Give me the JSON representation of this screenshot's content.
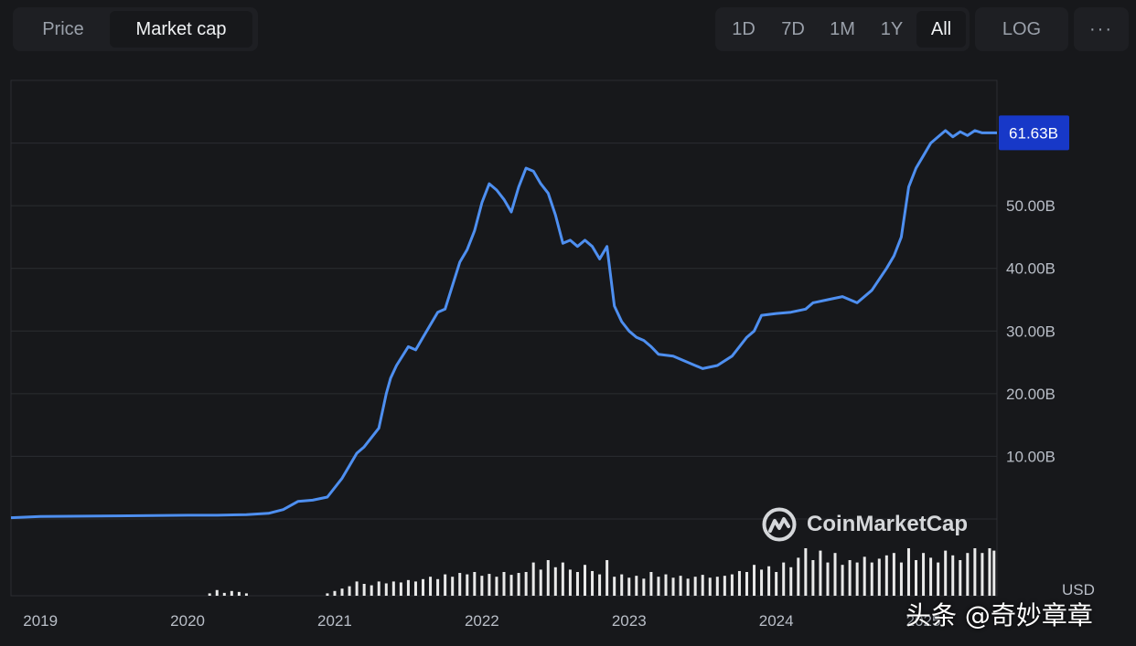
{
  "toolbar": {
    "tabs": [
      {
        "label": "Price",
        "active": false
      },
      {
        "label": "Market cap",
        "active": true
      }
    ],
    "ranges": [
      {
        "label": "1D",
        "active": false
      },
      {
        "label": "7D",
        "active": false
      },
      {
        "label": "1M",
        "active": false
      },
      {
        "label": "1Y",
        "active": false
      },
      {
        "label": "All",
        "active": true
      }
    ],
    "log_label": "LOG",
    "more_label": "···"
  },
  "watermark": {
    "text": "CoinMarketCap",
    "icon": "coinmarketcap-logo"
  },
  "currency_label": "USD",
  "credit": "头条 @奇妙章章",
  "colors": {
    "background": "#17181b",
    "line": "#4e8ff0",
    "current_badge": "#1738c8",
    "volume": "#e9e9e9",
    "grid": "#2b2d31"
  },
  "chart_data": {
    "type": "line",
    "title": "",
    "xlabel": "",
    "ylabel": "",
    "ylim": [
      0,
      70
    ],
    "y_unit": "B",
    "y_ticks": [
      "10.00B",
      "20.00B",
      "30.00B",
      "40.00B",
      "50.00B"
    ],
    "x_ticks": [
      "2019",
      "2020",
      "2021",
      "2022",
      "2023",
      "2024",
      "2025"
    ],
    "xlim": [
      2018.8,
      2025.5
    ],
    "current_value": 61.63,
    "current_label": "61.63B",
    "grid": true,
    "series": [
      {
        "x": [
          2018.8,
          2019.0,
          2019.5,
          2020.0,
          2020.2,
          2020.4,
          2020.55,
          2020.65,
          2020.75,
          2020.85,
          2020.95,
          2021.05,
          2021.15,
          2021.2,
          2021.3,
          2021.35,
          2021.38,
          2021.42,
          2021.5,
          2021.55,
          2021.6,
          2021.7,
          2021.75,
          2021.85,
          2021.9,
          2021.95,
          2022.0,
          2022.05,
          2022.1,
          2022.15,
          2022.2,
          2022.25,
          2022.3,
          2022.35,
          2022.4,
          2022.45,
          2022.5,
          2022.55,
          2022.6,
          2022.65,
          2022.7,
          2022.75,
          2022.8,
          2022.85,
          2022.9,
          2022.95,
          2023.0,
          2023.05,
          2023.1,
          2023.15,
          2023.2,
          2023.3,
          2023.4,
          2023.5,
          2023.6,
          2023.7,
          2023.8,
          2023.85,
          2023.9,
          2024.0,
          2024.1,
          2024.2,
          2024.25,
          2024.35,
          2024.45,
          2024.55,
          2024.65,
          2024.75,
          2024.8,
          2024.85,
          2024.9,
          2024.95,
          2025.0,
          2025.05,
          2025.1,
          2025.15,
          2025.2,
          2025.25,
          2025.3,
          2025.35,
          2025.4,
          2025.45,
          2025.5
        ],
        "y": [
          0.2,
          0.4,
          0.5,
          0.6,
          0.6,
          0.7,
          0.9,
          1.5,
          2.8,
          3.0,
          3.5,
          6.5,
          10.5,
          11.5,
          14.5,
          20.0,
          22.5,
          24.5,
          27.5,
          27.0,
          29.0,
          33.0,
          33.5,
          41.0,
          43.0,
          46.0,
          50.5,
          53.5,
          52.5,
          51.0,
          49.0,
          53.0,
          56.0,
          55.5,
          53.5,
          52.0,
          48.5,
          44.0,
          44.5,
          43.5,
          44.5,
          43.5,
          41.5,
          43.5,
          34.0,
          31.5,
          30.0,
          29.0,
          28.5,
          27.5,
          26.3,
          26.0,
          25.0,
          24.0,
          24.5,
          26.0,
          29.0,
          30.0,
          32.5,
          32.8,
          33.0,
          33.5,
          34.5,
          35.0,
          35.5,
          34.5,
          36.5,
          40.0,
          42.0,
          45.0,
          53.0,
          56.0,
          58.0,
          60.0,
          61.0,
          62.0,
          61.0,
          61.8,
          61.2,
          62.0,
          61.63,
          61.63,
          61.63
        ],
        "color": "#4e8ff0"
      }
    ],
    "volume": {
      "x": [
        2020.15,
        2020.2,
        2020.25,
        2020.3,
        2020.35,
        2020.4,
        2020.95,
        2021.0,
        2021.05,
        2021.1,
        2021.15,
        2021.2,
        2021.25,
        2021.3,
        2021.35,
        2021.4,
        2021.45,
        2021.5,
        2021.55,
        2021.6,
        2021.65,
        2021.7,
        2021.75,
        2021.8,
        2021.85,
        2021.9,
        2021.95,
        2022.0,
        2022.05,
        2022.1,
        2022.15,
        2022.2,
        2022.25,
        2022.3,
        2022.35,
        2022.4,
        2022.45,
        2022.5,
        2022.55,
        2022.6,
        2022.65,
        2022.7,
        2022.75,
        2022.8,
        2022.85,
        2022.9,
        2022.95,
        2023.0,
        2023.05,
        2023.1,
        2023.15,
        2023.2,
        2023.25,
        2023.3,
        2023.35,
        2023.4,
        2023.45,
        2023.5,
        2023.55,
        2023.6,
        2023.65,
        2023.7,
        2023.75,
        2023.8,
        2023.85,
        2023.9,
        2023.95,
        2024.0,
        2024.05,
        2024.1,
        2024.15,
        2024.2,
        2024.25,
        2024.3,
        2024.35,
        2024.4,
        2024.45,
        2024.5,
        2024.55,
        2024.6,
        2024.65,
        2024.7,
        2024.75,
        2024.8,
        2024.85,
        2024.9,
        2024.95,
        2025.0,
        2025.05,
        2025.1,
        2025.15,
        2025.2,
        2025.25,
        2025.3,
        2025.35,
        2025.4,
        2025.45,
        2025.48
      ],
      "values": [
        0.05,
        0.12,
        0.06,
        0.1,
        0.08,
        0.05,
        0.05,
        0.1,
        0.15,
        0.2,
        0.3,
        0.25,
        0.22,
        0.3,
        0.26,
        0.3,
        0.28,
        0.33,
        0.3,
        0.35,
        0.4,
        0.35,
        0.45,
        0.4,
        0.48,
        0.45,
        0.5,
        0.42,
        0.46,
        0.4,
        0.5,
        0.44,
        0.48,
        0.5,
        0.7,
        0.55,
        0.75,
        0.6,
        0.7,
        0.55,
        0.5,
        0.65,
        0.52,
        0.45,
        0.75,
        0.4,
        0.45,
        0.38,
        0.42,
        0.36,
        0.5,
        0.4,
        0.45,
        0.38,
        0.42,
        0.36,
        0.4,
        0.44,
        0.38,
        0.4,
        0.42,
        0.45,
        0.52,
        0.5,
        0.65,
        0.55,
        0.62,
        0.5,
        0.7,
        0.6,
        0.8,
        1.0,
        0.75,
        0.95,
        0.7,
        0.9,
        0.65,
        0.75,
        0.7,
        0.82,
        0.7,
        0.78,
        0.85,
        0.9,
        0.7,
        1.0,
        0.75,
        0.9,
        0.8,
        0.7,
        0.95,
        0.85,
        0.75,
        0.9,
        1.0,
        0.9,
        1.0,
        0.95
      ]
    }
  }
}
